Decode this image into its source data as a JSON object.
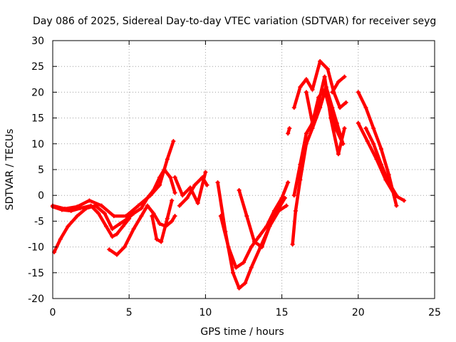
{
  "chart_data": {
    "type": "scatter",
    "title": "Day 086 of 2025, Sidereal Day-to-day VTEC variation (SDTVAR) for receiver seyg",
    "xlabel": "GPS time / hours",
    "ylabel": "SDTVAR / TECUs",
    "xlim": [
      0,
      25
    ],
    "ylim": [
      -20,
      30
    ],
    "xticks": [
      "0",
      "5",
      "10",
      "15",
      "20",
      "25"
    ],
    "yticks": [
      "-20",
      "-15",
      "-10",
      "-5",
      "0",
      "5",
      "10",
      "15",
      "20",
      "25",
      "30"
    ],
    "grid": true,
    "marker": "plus",
    "color": "#ff0000",
    "series": [
      {
        "name": "s1",
        "x": [
          0.0,
          0.6,
          1.2,
          1.8,
          2.5,
          3.0,
          3.5,
          3.9,
          4.2,
          4.6,
          5.0
        ],
        "y": [
          -2.2,
          -2.8,
          -3.0,
          -2.5,
          -2.0,
          -3.5,
          -6.0,
          -8.0,
          -7.5,
          -6.0,
          -4.5
        ]
      },
      {
        "name": "s2",
        "x": [
          0.1,
          0.5,
          1.0,
          1.6,
          2.2,
          2.8,
          3.4,
          3.9,
          4.4,
          4.9,
          5.3,
          5.8,
          6.2,
          6.6,
          7.0,
          7.3,
          7.7,
          8.0
        ],
        "y": [
          -11.0,
          -8.5,
          -6.0,
          -4.0,
          -2.5,
          -2.0,
          -3.5,
          -6.5,
          -5.5,
          -4.5,
          -3.5,
          -2.5,
          -0.5,
          1.0,
          3.5,
          5.0,
          3.5,
          0.5
        ]
      },
      {
        "name": "s3",
        "x": [
          0.0,
          0.8,
          1.6,
          2.4,
          3.2,
          4.0,
          4.8,
          5.6,
          6.4,
          7.0,
          7.5,
          7.9
        ],
        "y": [
          -2.0,
          -2.6,
          -2.2,
          -1.0,
          -2.0,
          -4.0,
          -4.0,
          -2.0,
          0.0,
          2.0,
          7.0,
          10.5
        ]
      },
      {
        "name": "s4",
        "x": [
          3.7,
          4.2,
          4.7,
          5.3,
          5.8,
          6.2,
          6.6,
          7.0,
          7.4,
          7.8,
          8.0
        ],
        "y": [
          -10.5,
          -11.5,
          -10.0,
          -6.5,
          -4.0,
          -2.0,
          -3.5,
          -5.5,
          -6.0,
          -5.0,
          -4.0
        ]
      },
      {
        "name": "s5",
        "x": [
          6.5,
          6.8,
          7.1,
          7.5,
          7.8
        ],
        "y": [
          -4.0,
          -8.5,
          -9.0,
          -4.5,
          -1.0
        ]
      },
      {
        "name": "s6",
        "x": [
          8.0,
          8.5,
          9.0,
          9.5,
          10.0
        ],
        "y": [
          3.5,
          0.0,
          1.5,
          -1.5,
          4.5
        ]
      },
      {
        "name": "s7",
        "x": [
          8.3,
          8.8,
          9.3,
          9.8,
          10.1
        ],
        "y": [
          -2.0,
          -0.5,
          2.0,
          3.5,
          2.0
        ]
      },
      {
        "name": "s8",
        "x": [
          10.8,
          11.3,
          11.8,
          12.2,
          12.6,
          13.0,
          13.6,
          14.2,
          14.8,
          15.3
        ],
        "y": [
          2.5,
          -7.0,
          -15.0,
          -18.0,
          -17.0,
          -14.0,
          -10.0,
          -6.0,
          -3.0,
          -2.0
        ]
      },
      {
        "name": "s9",
        "x": [
          11.0,
          11.5,
          12.0,
          12.5,
          13.0,
          13.5,
          14.0,
          14.5,
          15.0,
          15.4
        ],
        "y": [
          -4.0,
          -10.0,
          -14.0,
          -13.0,
          -10.0,
          -8.0,
          -6.0,
          -3.0,
          -0.5,
          2.5
        ]
      },
      {
        "name": "s10",
        "x": [
          12.2,
          12.7,
          13.2,
          13.7,
          14.2,
          14.7,
          15.2
        ],
        "y": [
          1.0,
          -4.0,
          -9.0,
          -10.0,
          -6.0,
          -3.0,
          -0.5
        ]
      },
      {
        "name": "s11",
        "x": [
          15.4,
          15.5
        ],
        "y": [
          12.0,
          13.0
        ]
      },
      {
        "name": "s12",
        "x": [
          15.7,
          15.9,
          16.2,
          16.6,
          17.0,
          17.5,
          17.9,
          18.3,
          18.6,
          19.0
        ],
        "y": [
          -9.5,
          -3.0,
          3.0,
          10.0,
          13.0,
          17.0,
          21.0,
          17.0,
          14.0,
          10.0
        ]
      },
      {
        "name": "s13",
        "x": [
          15.8,
          16.2,
          16.6,
          17.0,
          17.4,
          17.8,
          18.2,
          18.6,
          19.0
        ],
        "y": [
          0.0,
          6.0,
          12.0,
          14.0,
          19.0,
          20.5,
          16.0,
          12.5,
          10.0
        ]
      },
      {
        "name": "s14",
        "x": [
          15.8,
          16.2,
          16.6,
          17.0,
          17.5,
          18.0,
          18.4,
          18.8,
          19.2
        ],
        "y": [
          17.0,
          21.0,
          22.5,
          20.5,
          26.0,
          24.5,
          20.0,
          17.0,
          18.0
        ]
      },
      {
        "name": "s15",
        "x": [
          16.6,
          17.0,
          17.4,
          17.8,
          18.2,
          18.7,
          19.1
        ],
        "y": [
          20.0,
          14.0,
          18.0,
          23.0,
          15.0,
          8.0,
          13.0
        ]
      },
      {
        "name": "s16",
        "x": [
          18.3,
          18.7,
          19.1
        ],
        "y": [
          20.0,
          22.0,
          23.0
        ]
      },
      {
        "name": "s17",
        "x": [
          20.0,
          20.5,
          21.0,
          21.5,
          22.0,
          22.5
        ],
        "y": [
          20.0,
          17.0,
          13.0,
          9.0,
          4.0,
          -2.0
        ]
      },
      {
        "name": "s18",
        "x": [
          20.0,
          20.6,
          21.2,
          21.8,
          22.4,
          23.0
        ],
        "y": [
          14.0,
          10.5,
          7.0,
          3.0,
          0.0,
          -1.0
        ]
      },
      {
        "name": "s19",
        "x": [
          20.5,
          21.0,
          21.5,
          22.0,
          22.5
        ],
        "y": [
          13.0,
          10.0,
          6.0,
          2.5,
          0.0
        ]
      }
    ]
  }
}
